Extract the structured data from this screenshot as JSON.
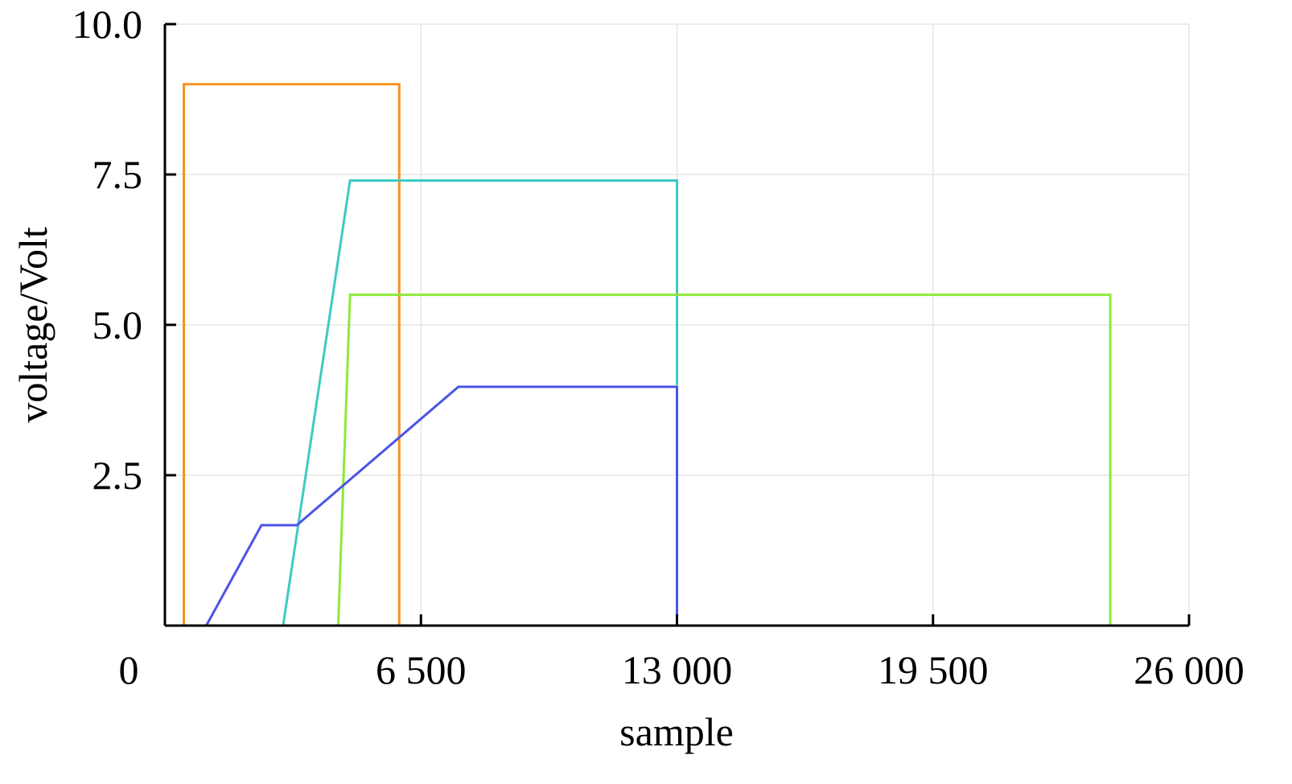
{
  "chart_data": {
    "type": "line",
    "title": "",
    "xlabel": "sample",
    "ylabel": "voltage/Volt",
    "xlim": [
      0,
      26000
    ],
    "ylim": [
      0,
      10
    ],
    "x_ticks": [
      0,
      6500,
      13000,
      19500,
      26000
    ],
    "x_tick_labels": [
      "0",
      "6 500",
      "13 000",
      "19 500",
      "26 000"
    ],
    "y_ticks": [
      2.5,
      5.0,
      7.5,
      10.0
    ],
    "y_tick_labels": [
      "2.5",
      "5.0",
      "7.5",
      "10.0"
    ],
    "grid": true,
    "legend": "none",
    "series": [
      {
        "color": "#f5921e",
        "x": [
          480,
          480,
          5950,
          5950
        ],
        "y": [
          0,
          9.0,
          9.0,
          0
        ]
      },
      {
        "color": "#3ec9c3",
        "x": [
          3000,
          4700,
          13000,
          13000
        ],
        "y": [
          0,
          7.4,
          7.4,
          4.0
        ]
      },
      {
        "color": "#8ee83a",
        "x": [
          4400,
          4700,
          24000,
          24000
        ],
        "y": [
          0,
          5.5,
          5.5,
          0
        ]
      },
      {
        "color": "#4a55e6",
        "x": [
          1050,
          2450,
          3350,
          7450,
          13000,
          13000
        ],
        "y": [
          0,
          1.67,
          1.67,
          3.97,
          3.97,
          0
        ]
      }
    ]
  }
}
